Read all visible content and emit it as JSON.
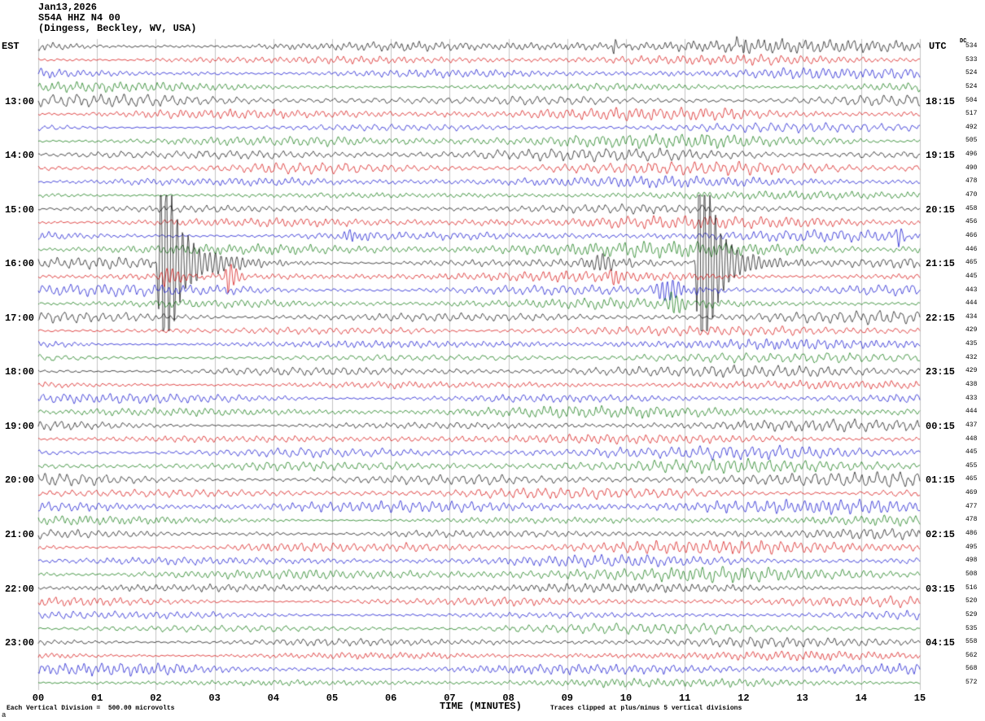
{
  "header": {
    "date": "Jan13,2026",
    "station": "S54A HHZ N4 00",
    "location": "(Dingess, Beckley, WV, USA)"
  },
  "axes": {
    "left_label": "EST",
    "right_label": "UTC",
    "dc_label": "DC",
    "x_title": "TIME (MINUTES)",
    "x_ticks": [
      "00",
      "01",
      "02",
      "03",
      "04",
      "05",
      "06",
      "07",
      "08",
      "09",
      "10",
      "11",
      "12",
      "13",
      "14",
      "15"
    ]
  },
  "footer": {
    "left": "Each Vertical Division =  500.00 microvolts",
    "right": "Traces clipped at plus/minus 5 vertical divisions",
    "corner": "a"
  },
  "palette": {
    "grid": "#c4c4c4",
    "traces": {
      "black": "#000000",
      "red": "#d40000",
      "blue": "#0000cc",
      "green": "#007000"
    }
  },
  "chart_data": {
    "type": "line",
    "subtype": "helicorder-seismogram",
    "title": "S54A HHZ N4 00",
    "x_range_minutes": [
      0,
      15
    ],
    "minutes_per_line": 15,
    "clip_divisions": 5,
    "microvolts_per_division": 500,
    "trace_color_cycle": [
      "black",
      "red",
      "blue",
      "green"
    ],
    "rows": [
      {
        "est": "",
        "utc": "",
        "dc": 534,
        "color": "black"
      },
      {
        "est": "",
        "utc": "",
        "dc": 533,
        "color": "red"
      },
      {
        "est": "",
        "utc": "",
        "dc": 524,
        "color": "blue"
      },
      {
        "est": "",
        "utc": "",
        "dc": 524,
        "color": "green"
      },
      {
        "est": "13:00",
        "utc": "18:15",
        "dc": 504,
        "color": "black"
      },
      {
        "est": "",
        "utc": "",
        "dc": 517,
        "color": "red"
      },
      {
        "est": "",
        "utc": "",
        "dc": 492,
        "color": "blue"
      },
      {
        "est": "",
        "utc": "",
        "dc": 505,
        "color": "green"
      },
      {
        "est": "14:00",
        "utc": "19:15",
        "dc": 496,
        "color": "black"
      },
      {
        "est": "",
        "utc": "",
        "dc": 490,
        "color": "red"
      },
      {
        "est": "",
        "utc": "",
        "dc": 478,
        "color": "blue"
      },
      {
        "est": "",
        "utc": "",
        "dc": 470,
        "color": "green"
      },
      {
        "est": "15:00",
        "utc": "20:15",
        "dc": 458,
        "color": "black"
      },
      {
        "est": "",
        "utc": "",
        "dc": 456,
        "color": "red"
      },
      {
        "est": "",
        "utc": "",
        "dc": 466,
        "color": "blue"
      },
      {
        "est": "",
        "utc": "",
        "dc": 446,
        "color": "green"
      },
      {
        "est": "16:00",
        "utc": "21:15",
        "dc": 465,
        "color": "black"
      },
      {
        "est": "",
        "utc": "",
        "dc": 445,
        "color": "red"
      },
      {
        "est": "",
        "utc": "",
        "dc": 443,
        "color": "blue"
      },
      {
        "est": "",
        "utc": "",
        "dc": 444,
        "color": "green"
      },
      {
        "est": "17:00",
        "utc": "22:15",
        "dc": 434,
        "color": "black"
      },
      {
        "est": "",
        "utc": "",
        "dc": 429,
        "color": "red"
      },
      {
        "est": "",
        "utc": "",
        "dc": 435,
        "color": "blue"
      },
      {
        "est": "",
        "utc": "",
        "dc": 432,
        "color": "green"
      },
      {
        "est": "18:00",
        "utc": "23:15",
        "dc": 429,
        "color": "black"
      },
      {
        "est": "",
        "utc": "",
        "dc": 438,
        "color": "red"
      },
      {
        "est": "",
        "utc": "",
        "dc": 433,
        "color": "blue"
      },
      {
        "est": "",
        "utc": "",
        "dc": 444,
        "color": "green"
      },
      {
        "est": "19:00",
        "utc": "00:15",
        "dc": 437,
        "color": "black"
      },
      {
        "est": "",
        "utc": "",
        "dc": 448,
        "color": "red"
      },
      {
        "est": "",
        "utc": "",
        "dc": 445,
        "color": "blue"
      },
      {
        "est": "",
        "utc": "",
        "dc": 455,
        "color": "green"
      },
      {
        "est": "20:00",
        "utc": "01:15",
        "dc": 465,
        "color": "black"
      },
      {
        "est": "",
        "utc": "",
        "dc": 469,
        "color": "red"
      },
      {
        "est": "",
        "utc": "",
        "dc": 477,
        "color": "blue"
      },
      {
        "est": "",
        "utc": "",
        "dc": 478,
        "color": "green"
      },
      {
        "est": "21:00",
        "utc": "02:15",
        "dc": 486,
        "color": "black"
      },
      {
        "est": "",
        "utc": "",
        "dc": 495,
        "color": "red"
      },
      {
        "est": "",
        "utc": "",
        "dc": 498,
        "color": "blue"
      },
      {
        "est": "",
        "utc": "",
        "dc": 508,
        "color": "green"
      },
      {
        "est": "22:00",
        "utc": "03:15",
        "dc": 516,
        "color": "black"
      },
      {
        "est": "",
        "utc": "",
        "dc": 520,
        "color": "red"
      },
      {
        "est": "",
        "utc": "",
        "dc": 529,
        "color": "blue"
      },
      {
        "est": "",
        "utc": "",
        "dc": 535,
        "color": "green"
      },
      {
        "est": "23:00",
        "utc": "04:15",
        "dc": 558,
        "color": "black"
      },
      {
        "est": "",
        "utc": "",
        "dc": 562,
        "color": "red"
      },
      {
        "est": "",
        "utc": "",
        "dc": 568,
        "color": "blue"
      },
      {
        "est": "",
        "utc": "",
        "dc": 572,
        "color": "green"
      }
    ],
    "events": [
      {
        "row": 0,
        "min": 9.81,
        "amp": 13,
        "rise": 1.5,
        "decay": 4
      },
      {
        "row": 0,
        "min": 11.88,
        "amp": 15,
        "rise": 1.5,
        "decay": 5
      },
      {
        "row": 0,
        "min": 12.02,
        "amp": 11,
        "rise": 1.5,
        "decay": 4
      },
      {
        "row": 14,
        "min": 5.35,
        "amp": 8,
        "rise": 6,
        "decay": 12
      },
      {
        "row": 14,
        "min": 14.65,
        "amp": 13,
        "rise": 2,
        "decay": 6
      },
      {
        "row": 16,
        "min": 2.1,
        "amp": 220,
        "rise": 2.5,
        "decay": 12
      },
      {
        "row": 16,
        "min": 2.3,
        "amp": 30,
        "rise": 8,
        "decay": 50
      },
      {
        "row": 16,
        "min": 9.53,
        "amp": 9,
        "rise": 12,
        "decay": 30
      },
      {
        "row": 16,
        "min": 11.26,
        "amp": 220,
        "rise": 2.5,
        "decay": 11
      },
      {
        "row": 16,
        "min": 11.45,
        "amp": 26,
        "rise": 8,
        "decay": 45
      },
      {
        "row": 17,
        "min": 2.14,
        "amp": 10,
        "rise": 4,
        "decay": 18
      },
      {
        "row": 17,
        "min": 3.23,
        "amp": 20,
        "rise": 2.5,
        "decay": 9
      },
      {
        "row": 17,
        "min": 9.78,
        "amp": 7,
        "rise": 3,
        "decay": 8
      },
      {
        "row": 18,
        "min": 10.68,
        "amp": 15,
        "rise": 8,
        "decay": 22
      },
      {
        "row": 19,
        "min": 10.77,
        "amp": 12,
        "rise": 5,
        "decay": 16
      }
    ]
  }
}
